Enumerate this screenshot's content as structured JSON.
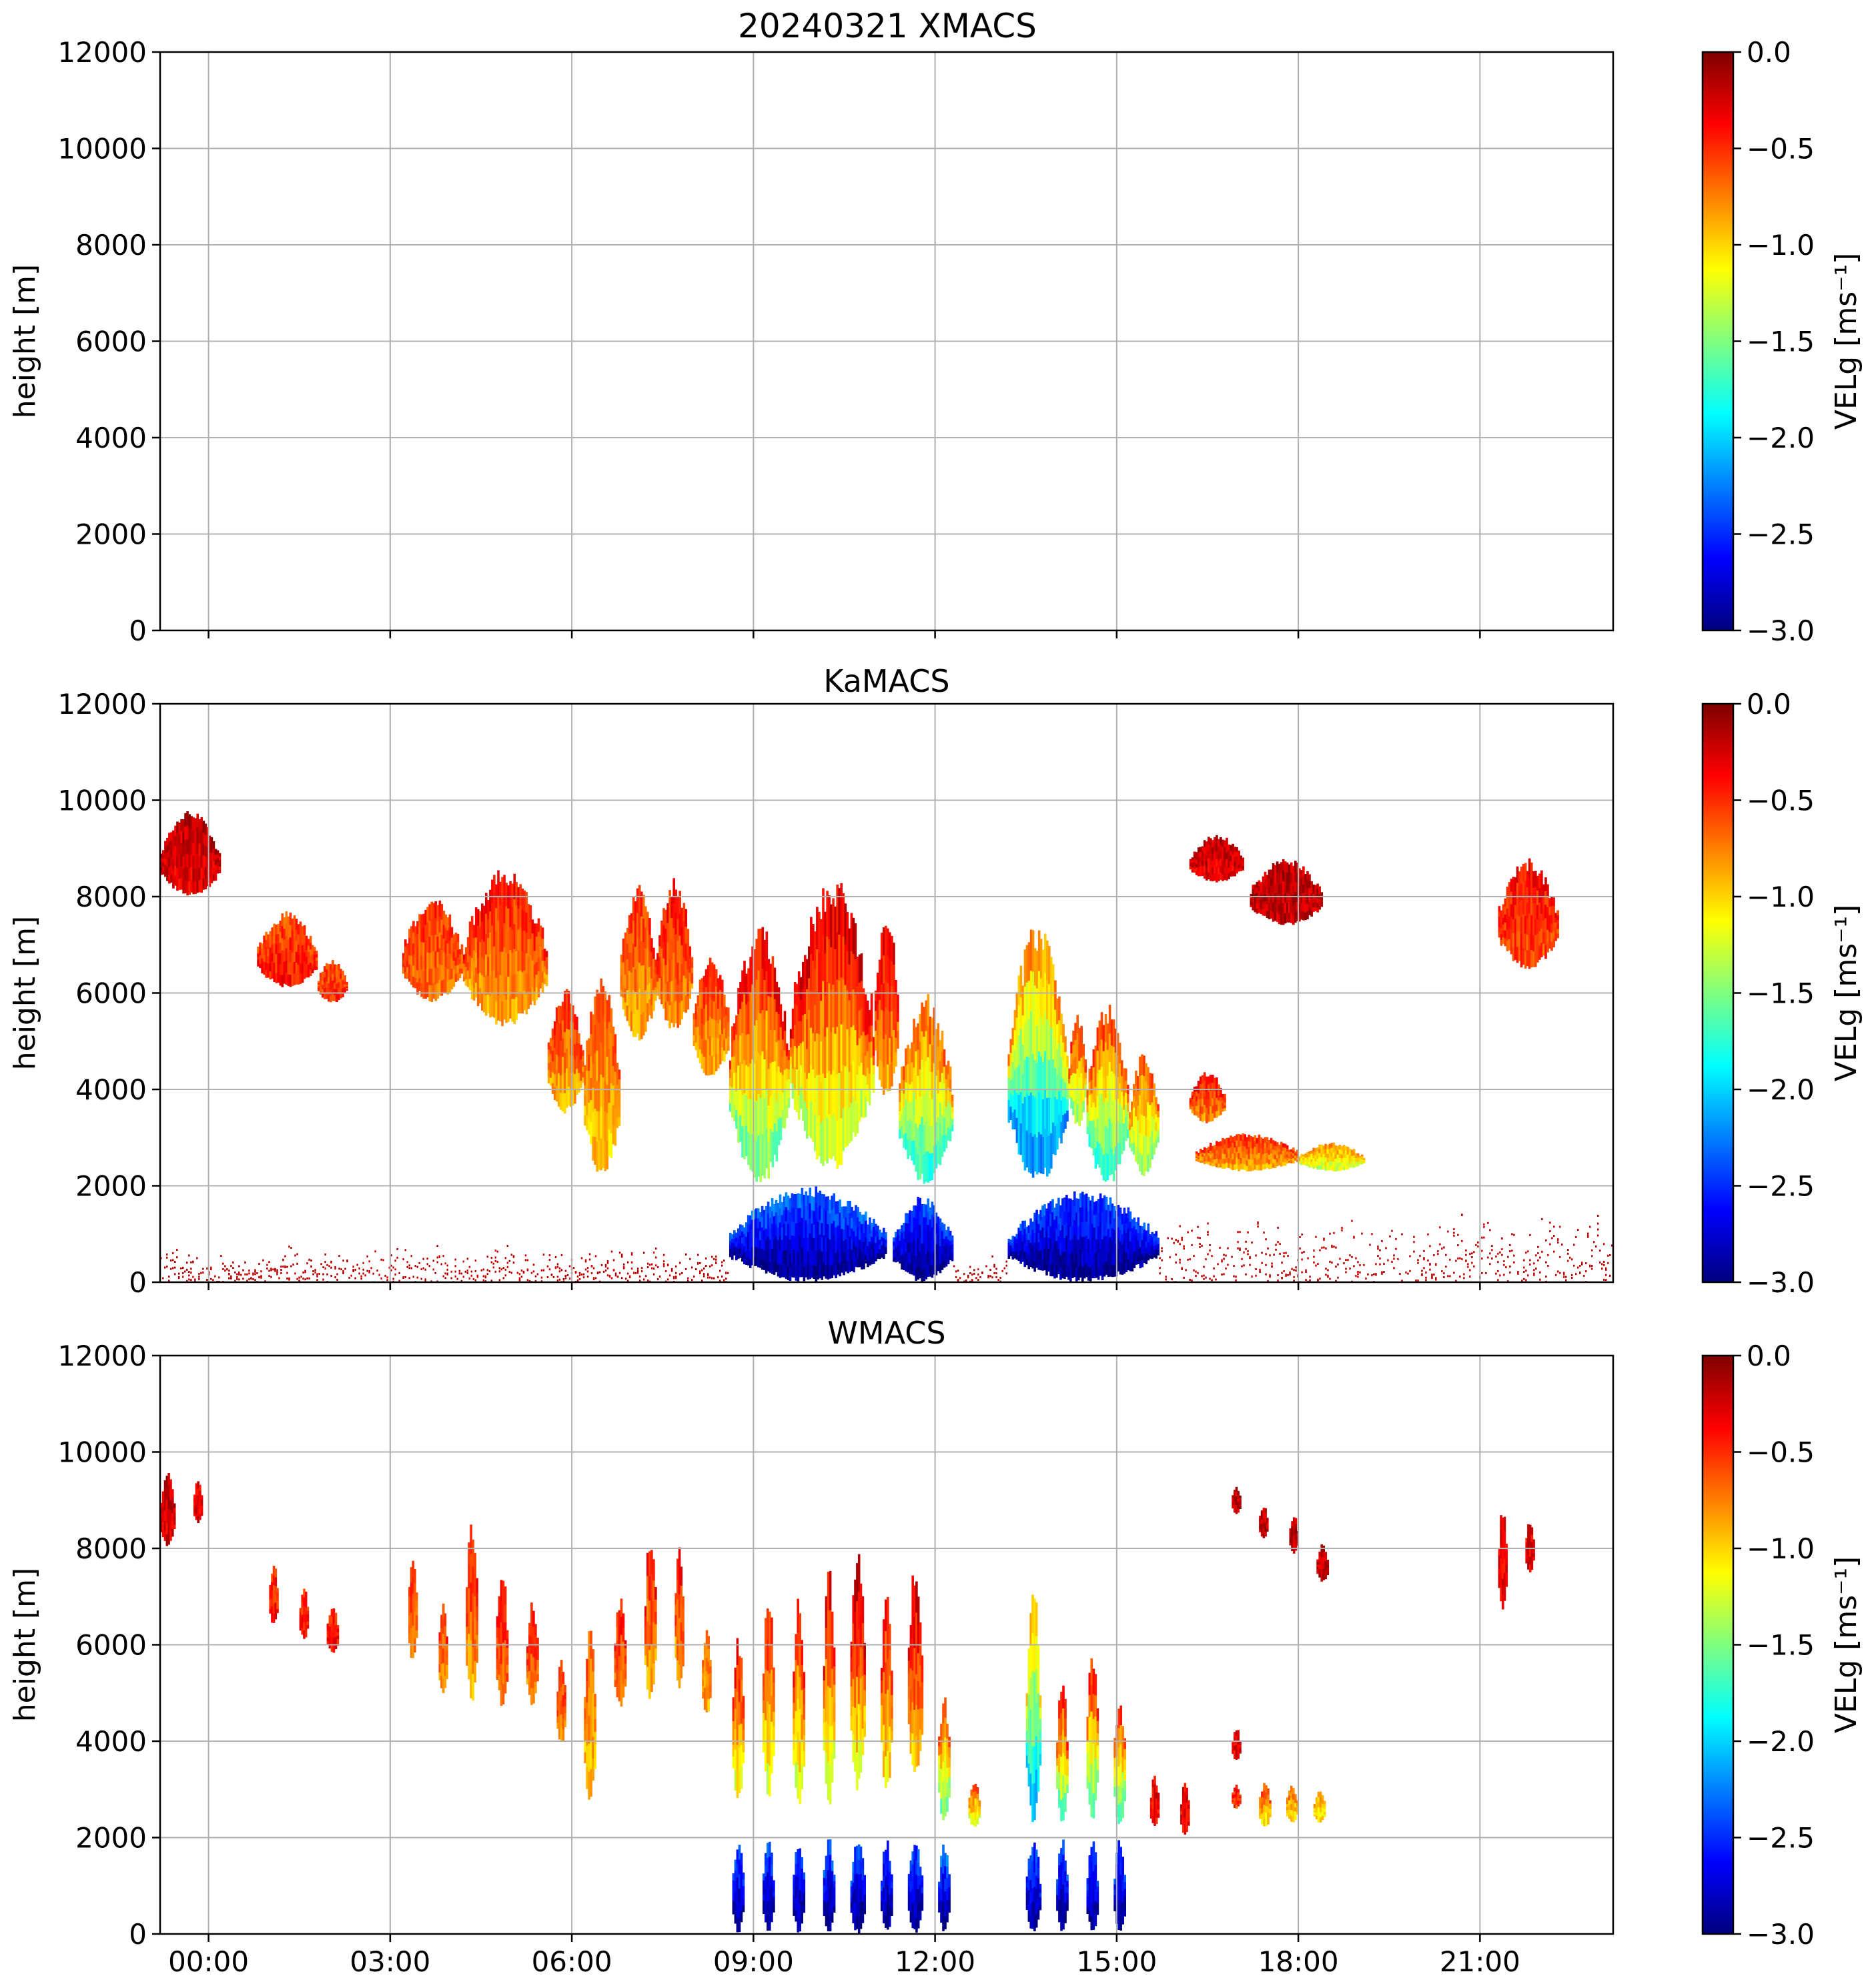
{
  "figure_title": "20240321 XMACS",
  "colormap": {
    "name": "jet",
    "stops": [
      "#00007f",
      "#0000ff",
      "#007fff",
      "#00ffff",
      "#7fff7f",
      "#ffff00",
      "#ff7f00",
      "#ff0000",
      "#7f0000"
    ]
  },
  "chart_data": [
    {
      "type": "heatmap",
      "title": "20240321 XMACS",
      "ylabel": "height [m]",
      "xlabel": "",
      "xlim_hours": [
        -0.8,
        23.2
      ],
      "ylim": [
        0,
        12000
      ],
      "grid": true,
      "x_ticks": [],
      "y_ticks": [
        "0",
        "2000",
        "4000",
        "6000",
        "8000",
        "10000",
        "12000"
      ],
      "colorbar": {
        "label": "VELg [ms⁻¹]",
        "range": [
          -3.0,
          0.0
        ],
        "ticks": [
          "−3.0",
          "−2.5",
          "−2.0",
          "−1.5",
          "−1.0",
          "−0.5",
          "0.0"
        ]
      },
      "echoes": []
    },
    {
      "type": "heatmap",
      "title": "KaMACS",
      "ylabel": "height [m]",
      "xlabel": "",
      "xlim_hours": [
        -0.8,
        23.2
      ],
      "ylim": [
        0,
        12000
      ],
      "grid": true,
      "x_ticks": [],
      "y_ticks": [
        "0",
        "2000",
        "4000",
        "6000",
        "8000",
        "10000",
        "12000"
      ],
      "colorbar": {
        "label": "VELg [ms⁻¹]",
        "range": [
          -3.0,
          0.0
        ],
        "ticks": [
          "−3.0",
          "−2.5",
          "−2.0",
          "−1.5",
          "−1.0",
          "−0.5",
          "0.0"
        ]
      },
      "echoes": [
        {
          "t0": -0.8,
          "t1": 0.2,
          "h0": 8000,
          "h1": 9800,
          "v_top": -0.2,
          "v_bottom": -0.3
        },
        {
          "t0": 0.8,
          "t1": 1.8,
          "h0": 6100,
          "h1": 7700,
          "v_top": -0.6,
          "v_bottom": -0.4
        },
        {
          "t0": 1.8,
          "t1": 2.3,
          "h0": 5800,
          "h1": 6700,
          "v_top": -0.6,
          "v_bottom": -0.5
        },
        {
          "t0": 3.2,
          "t1": 4.2,
          "h0": 5800,
          "h1": 8000,
          "v_top": -0.5,
          "v_bottom": -0.7
        },
        {
          "t0": 4.2,
          "t1": 5.6,
          "h0": 5300,
          "h1": 8600,
          "v_top": -0.4,
          "v_bottom": -0.9
        },
        {
          "t0": 5.6,
          "t1": 6.2,
          "h0": 3500,
          "h1": 6100,
          "v_top": -0.5,
          "v_bottom": -0.9
        },
        {
          "t0": 6.2,
          "t1": 6.8,
          "h0": 2200,
          "h1": 6500,
          "v_top": -0.6,
          "v_bottom": -1.0
        },
        {
          "t0": 6.8,
          "t1": 7.4,
          "h0": 5000,
          "h1": 8300,
          "v_top": -0.5,
          "v_bottom": -0.9
        },
        {
          "t0": 7.4,
          "t1": 8.0,
          "h0": 5200,
          "h1": 8400,
          "v_top": -0.4,
          "v_bottom": -0.8
        },
        {
          "t0": 8.0,
          "t1": 8.6,
          "h0": 4200,
          "h1": 6800,
          "v_top": -0.5,
          "v_bottom": -0.9
        },
        {
          "t0": 8.6,
          "t1": 9.6,
          "h0": 2000,
          "h1": 7500,
          "v_top": -0.3,
          "v_bottom": -1.6
        },
        {
          "t0": 9.6,
          "t1": 11.0,
          "h0": 2300,
          "h1": 8500,
          "v_top": -0.2,
          "v_bottom": -1.4
        },
        {
          "t0": 11.0,
          "t1": 11.4,
          "h0": 3800,
          "h1": 7800,
          "v_top": -0.3,
          "v_bottom": -0.9
        },
        {
          "t0": 11.4,
          "t1": 12.3,
          "h0": 2000,
          "h1": 6000,
          "v_top": -0.6,
          "v_bottom": -1.8
        },
        {
          "t0": 13.2,
          "t1": 14.2,
          "h0": 2000,
          "h1": 7500,
          "v_top": -0.7,
          "v_bottom": -2.3
        },
        {
          "t0": 14.2,
          "t1": 14.5,
          "h0": 3200,
          "h1": 5600,
          "v_top": -0.4,
          "v_bottom": -1.5
        },
        {
          "t0": 14.5,
          "t1": 15.2,
          "h0": 2000,
          "h1": 5800,
          "v_top": -0.5,
          "v_bottom": -1.8
        },
        {
          "t0": 15.2,
          "t1": 15.7,
          "h0": 2200,
          "h1": 4800,
          "v_top": -0.6,
          "v_bottom": -1.5
        },
        {
          "t0": 16.2,
          "t1": 16.8,
          "h0": 3300,
          "h1": 4400,
          "v_top": -0.4,
          "v_bottom": -0.8
        },
        {
          "t0": 16.3,
          "t1": 18.0,
          "h0": 2300,
          "h1": 3100,
          "v_top": -0.5,
          "v_bottom": -0.9
        },
        {
          "t0": 18.0,
          "t1": 19.1,
          "h0": 2300,
          "h1": 2900,
          "v_top": -0.8,
          "v_bottom": -1.3
        },
        {
          "t0": 16.2,
          "t1": 17.1,
          "h0": 8300,
          "h1": 9300,
          "v_top": -0.2,
          "v_bottom": -0.3
        },
        {
          "t0": 17.2,
          "t1": 18.4,
          "h0": 7400,
          "h1": 8800,
          "v_top": -0.2,
          "v_bottom": -0.2
        },
        {
          "t0": 21.3,
          "t1": 22.3,
          "h0": 6500,
          "h1": 8800,
          "v_top": -0.4,
          "v_bottom": -0.6
        },
        {
          "t0": 8.6,
          "t1": 11.2,
          "h0": 0,
          "h1": 2000,
          "v_top": -2.3,
          "v_bottom": -3.0
        },
        {
          "t0": 11.3,
          "t1": 12.3,
          "h0": 0,
          "h1": 1800,
          "v_top": -2.4,
          "v_bottom": -3.0
        },
        {
          "t0": 13.2,
          "t1": 15.7,
          "h0": 0,
          "h1": 1900,
          "v_top": -2.4,
          "v_bottom": -3.0
        },
        {
          "t0": -0.8,
          "t1": 8.6,
          "h0": 0,
          "h1": 800,
          "v_top": -0.1,
          "v_bottom": -0.1,
          "sparse": true
        },
        {
          "t0": 12.3,
          "t1": 13.2,
          "h0": 0,
          "h1": 600,
          "v_top": -0.1,
          "v_bottom": -0.1,
          "sparse": true
        },
        {
          "t0": 15.7,
          "t1": 23.2,
          "h0": 0,
          "h1": 1500,
          "v_top": -0.1,
          "v_bottom": -0.1,
          "sparse": true
        }
      ]
    },
    {
      "type": "heatmap",
      "title": "WMACS",
      "ylabel": "height [m]",
      "xlabel": "",
      "xlim_hours": [
        -0.8,
        23.2
      ],
      "ylim": [
        0,
        12000
      ],
      "grid": true,
      "x_ticks": [
        "00:00",
        "03:00",
        "06:00",
        "09:00",
        "12:00",
        "15:00",
        "18:00",
        "21:00"
      ],
      "y_ticks": [
        "0",
        "2000",
        "4000",
        "6000",
        "8000",
        "10000",
        "12000"
      ],
      "colorbar": {
        "label": "VELg [ms⁻¹]",
        "range": [
          -3.0,
          0.0
        ],
        "ticks": [
          "−3.0",
          "−2.5",
          "−2.0",
          "−1.5",
          "−1.0",
          "−0.5",
          "0.0"
        ]
      },
      "echoes": [
        {
          "t0": -0.8,
          "t1": -0.55,
          "h0": 8000,
          "h1": 9700,
          "v_top": -0.2,
          "v_bottom": -0.3
        },
        {
          "t0": -0.25,
          "t1": -0.1,
          "h0": 8500,
          "h1": 9500,
          "v_top": -0.3,
          "v_bottom": -0.3
        },
        {
          "t0": 1.0,
          "t1": 1.15,
          "h0": 6400,
          "h1": 7700,
          "v_top": -0.5,
          "v_bottom": -0.4
        },
        {
          "t0": 1.5,
          "t1": 1.65,
          "h0": 6100,
          "h1": 7200,
          "v_top": -0.5,
          "v_bottom": -0.4
        },
        {
          "t0": 1.95,
          "t1": 2.15,
          "h0": 5800,
          "h1": 6800,
          "v_top": -0.5,
          "v_bottom": -0.4
        },
        {
          "t0": 3.3,
          "t1": 3.45,
          "h0": 5600,
          "h1": 8000,
          "v_top": -0.5,
          "v_bottom": -0.8
        },
        {
          "t0": 3.8,
          "t1": 3.95,
          "h0": 4900,
          "h1": 7000,
          "v_top": -0.5,
          "v_bottom": -0.8
        },
        {
          "t0": 4.25,
          "t1": 4.45,
          "h0": 4800,
          "h1": 8700,
          "v_top": -0.4,
          "v_bottom": -0.9
        },
        {
          "t0": 4.75,
          "t1": 4.95,
          "h0": 4700,
          "h1": 7600,
          "v_top": -0.4,
          "v_bottom": -0.7
        },
        {
          "t0": 5.25,
          "t1": 5.45,
          "h0": 4700,
          "h1": 7000,
          "v_top": -0.4,
          "v_bottom": -0.8
        },
        {
          "t0": 5.75,
          "t1": 5.9,
          "h0": 3900,
          "h1": 5800,
          "v_top": -0.5,
          "v_bottom": -0.8
        },
        {
          "t0": 6.2,
          "t1": 6.4,
          "h0": 2700,
          "h1": 6400,
          "v_top": -0.6,
          "v_bottom": -1.0
        },
        {
          "t0": 6.7,
          "t1": 6.9,
          "h0": 4700,
          "h1": 7000,
          "v_top": -0.4,
          "v_bottom": -0.8
        },
        {
          "t0": 7.2,
          "t1": 7.4,
          "h0": 4800,
          "h1": 8400,
          "v_top": -0.4,
          "v_bottom": -0.9
        },
        {
          "t0": 7.7,
          "t1": 7.85,
          "h0": 5000,
          "h1": 8200,
          "v_top": -0.4,
          "v_bottom": -0.9
        },
        {
          "t0": 8.15,
          "t1": 8.3,
          "h0": 4500,
          "h1": 6400,
          "v_top": -0.6,
          "v_bottom": -0.9
        },
        {
          "t0": 8.65,
          "t1": 8.85,
          "h0": 2700,
          "h1": 6200,
          "v_top": -0.4,
          "v_bottom": -1.2
        },
        {
          "t0": 9.15,
          "t1": 9.35,
          "h0": 2800,
          "h1": 7200,
          "v_top": -0.4,
          "v_bottom": -1.3
        },
        {
          "t0": 9.65,
          "t1": 9.85,
          "h0": 2600,
          "h1": 7200,
          "v_top": -0.4,
          "v_bottom": -1.3
        },
        {
          "t0": 10.15,
          "t1": 10.35,
          "h0": 2600,
          "h1": 7800,
          "v_top": -0.3,
          "v_bottom": -1.3
        },
        {
          "t0": 10.6,
          "t1": 10.85,
          "h0": 2900,
          "h1": 8200,
          "v_top": -0.2,
          "v_bottom": -1.2
        },
        {
          "t0": 11.1,
          "t1": 11.3,
          "h0": 2900,
          "h1": 7400,
          "v_top": -0.4,
          "v_bottom": -1.1
        },
        {
          "t0": 11.55,
          "t1": 11.8,
          "h0": 3200,
          "h1": 7800,
          "v_top": -0.2,
          "v_bottom": -1.0
        },
        {
          "t0": 12.05,
          "t1": 12.25,
          "h0": 2300,
          "h1": 5000,
          "v_top": -0.6,
          "v_bottom": -1.6
        },
        {
          "t0": 12.55,
          "t1": 12.75,
          "h0": 2200,
          "h1": 3200,
          "v_top": -0.6,
          "v_bottom": -1.3
        },
        {
          "t0": 13.5,
          "t1": 13.75,
          "h0": 2200,
          "h1": 7400,
          "v_top": -0.9,
          "v_bottom": -2.1
        },
        {
          "t0": 14.0,
          "t1": 14.2,
          "h0": 2300,
          "h1": 5300,
          "v_top": -0.4,
          "v_bottom": -1.6
        },
        {
          "t0": 14.5,
          "t1": 14.7,
          "h0": 2300,
          "h1": 5900,
          "v_top": -0.4,
          "v_bottom": -1.7
        },
        {
          "t0": 14.95,
          "t1": 15.15,
          "h0": 2200,
          "h1": 5000,
          "v_top": -0.5,
          "v_bottom": -1.7
        },
        {
          "t0": 15.55,
          "t1": 15.7,
          "h0": 2200,
          "h1": 3300,
          "v_top": -0.3,
          "v_bottom": -0.4
        },
        {
          "t0": 16.05,
          "t1": 16.2,
          "h0": 2000,
          "h1": 3200,
          "v_top": -0.3,
          "v_bottom": -0.4
        },
        {
          "t0": 16.9,
          "t1": 17.05,
          "h0": 3600,
          "h1": 4300,
          "v_top": -0.3,
          "v_bottom": -0.3
        },
        {
          "t0": 16.9,
          "t1": 17.05,
          "h0": 2600,
          "h1": 3100,
          "v_top": -0.4,
          "v_bottom": -0.6
        },
        {
          "t0": 17.35,
          "t1": 17.55,
          "h0": 2200,
          "h1": 3200,
          "v_top": -0.6,
          "v_bottom": -1.1
        },
        {
          "t0": 17.8,
          "t1": 18.0,
          "h0": 2300,
          "h1": 3100,
          "v_top": -0.7,
          "v_bottom": -1.1
        },
        {
          "t0": 18.25,
          "t1": 18.45,
          "h0": 2300,
          "h1": 3000,
          "v_top": -0.8,
          "v_bottom": -1.1
        },
        {
          "t0": 16.9,
          "t1": 17.05,
          "h0": 8700,
          "h1": 9300,
          "v_top": -0.2,
          "v_bottom": -0.2
        },
        {
          "t0": 17.35,
          "t1": 17.5,
          "h0": 8200,
          "h1": 8900,
          "v_top": -0.2,
          "v_bottom": -0.2
        },
        {
          "t0": 17.85,
          "t1": 18.0,
          "h0": 7900,
          "h1": 8700,
          "v_top": -0.2,
          "v_bottom": -0.2
        },
        {
          "t0": 18.3,
          "t1": 18.5,
          "h0": 7300,
          "h1": 8100,
          "v_top": -0.2,
          "v_bottom": -0.2
        },
        {
          "t0": 21.3,
          "t1": 21.45,
          "h0": 6700,
          "h1": 8900,
          "v_top": -0.3,
          "v_bottom": -0.3
        },
        {
          "t0": 21.75,
          "t1": 21.9,
          "h0": 7500,
          "h1": 8600,
          "v_top": -0.3,
          "v_bottom": -0.3
        },
        {
          "t0": 8.65,
          "t1": 8.85,
          "h0": 0,
          "h1": 2000,
          "v_top": -2.4,
          "v_bottom": -3.0
        },
        {
          "t0": 9.15,
          "t1": 9.35,
          "h0": 0,
          "h1": 2000,
          "v_top": -2.4,
          "v_bottom": -3.0
        },
        {
          "t0": 9.65,
          "t1": 9.85,
          "h0": 0,
          "h1": 2000,
          "v_top": -2.4,
          "v_bottom": -3.0
        },
        {
          "t0": 10.15,
          "t1": 10.35,
          "h0": 0,
          "h1": 2000,
          "v_top": -2.4,
          "v_bottom": -3.0
        },
        {
          "t0": 10.6,
          "t1": 10.85,
          "h0": 0,
          "h1": 2000,
          "v_top": -2.4,
          "v_bottom": -3.0
        },
        {
          "t0": 11.1,
          "t1": 11.3,
          "h0": 0,
          "h1": 2000,
          "v_top": -2.4,
          "v_bottom": -3.0
        },
        {
          "t0": 11.55,
          "t1": 11.8,
          "h0": 0,
          "h1": 2000,
          "v_top": -2.4,
          "v_bottom": -3.0
        },
        {
          "t0": 12.05,
          "t1": 12.25,
          "h0": 0,
          "h1": 1900,
          "v_top": -2.3,
          "v_bottom": -3.0
        },
        {
          "t0": 13.5,
          "t1": 13.75,
          "h0": 0,
          "h1": 2000,
          "v_top": -2.4,
          "v_bottom": -3.0
        },
        {
          "t0": 14.0,
          "t1": 14.2,
          "h0": 0,
          "h1": 2000,
          "v_top": -2.4,
          "v_bottom": -3.0
        },
        {
          "t0": 14.5,
          "t1": 14.7,
          "h0": 0,
          "h1": 2000,
          "v_top": -2.4,
          "v_bottom": -3.0
        },
        {
          "t0": 14.95,
          "t1": 15.15,
          "h0": 0,
          "h1": 2000,
          "v_top": -2.4,
          "v_bottom": -3.0
        }
      ]
    }
  ]
}
